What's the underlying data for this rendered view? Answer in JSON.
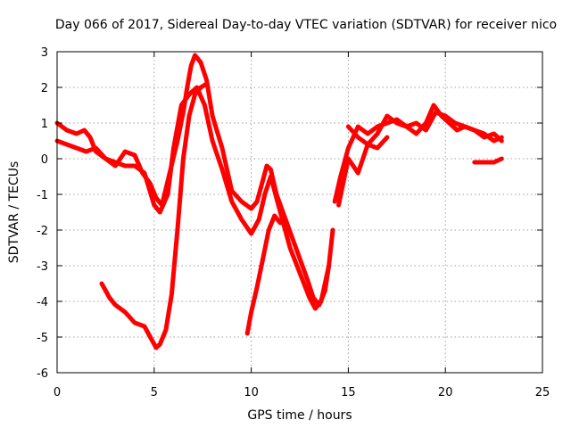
{
  "chart_data": {
    "type": "scatter",
    "title": "Day 066 of 2017, Sidereal Day-to-day VTEC variation (SDTVAR) for receiver nico",
    "xlabel": "GPS time / hours",
    "ylabel": "SDTVAR / TECUs",
    "xlim": [
      0,
      25
    ],
    "ylim": [
      -6,
      3
    ],
    "xticks": [
      0,
      5,
      10,
      15,
      20,
      25
    ],
    "yticks": [
      -6,
      -5,
      -4,
      -3,
      -2,
      -1,
      0,
      1,
      2,
      3
    ],
    "xtick_labels": [
      "0",
      "5",
      "10",
      "15",
      "20",
      "25"
    ],
    "ytick_labels": [
      "-6",
      "-5",
      "-4",
      "-3",
      "-2",
      "-1",
      "0",
      "1",
      "2",
      "3"
    ],
    "grid": true,
    "marker": "plus",
    "color": "#ff0000",
    "series": [
      {
        "x": [
          0.0,
          0.5,
          1.0,
          1.4,
          1.7,
          2.0,
          2.5,
          3.0,
          3.5,
          4.0,
          4.4,
          4.8,
          5.1,
          5.4,
          5.8,
          6.2,
          6.5,
          6.7,
          6.9,
          7.1,
          7.4,
          7.7,
          8.0,
          8.5,
          9.0,
          9.5,
          10.0,
          10.3,
          10.6,
          10.8,
          11.0,
          11.3,
          11.7,
          12.1,
          12.5,
          12.9,
          13.2,
          13.5,
          13.8,
          14.0,
          14.2
        ],
        "y": [
          1.0,
          0.8,
          0.7,
          0.8,
          0.6,
          0.2,
          0.0,
          -0.2,
          0.2,
          0.1,
          -0.4,
          -0.7,
          -1.1,
          -1.3,
          -0.4,
          0.5,
          1.3,
          2.0,
          2.6,
          2.9,
          2.7,
          2.2,
          1.2,
          0.3,
          -0.9,
          -1.2,
          -1.4,
          -1.2,
          -0.6,
          -0.2,
          -0.3,
          -1.0,
          -1.6,
          -2.2,
          -2.8,
          -3.4,
          -3.9,
          -4.1,
          -3.7,
          -3.0,
          -2.0
        ]
      },
      {
        "x": [
          0.0,
          0.5,
          1.0,
          1.5,
          2.0,
          2.5,
          3.0,
          3.5,
          4.0,
          4.5,
          5.0,
          5.3,
          5.7,
          6.0,
          6.4,
          6.8,
          7.2,
          7.6,
          8.0,
          8.5,
          9.0,
          9.5,
          10.0,
          10.4,
          10.7,
          11.0,
          11.5,
          12.0,
          12.5,
          13.0,
          13.3,
          13.6,
          14.0
        ],
        "y": [
          0.5,
          0.4,
          0.3,
          0.2,
          0.3,
          0.0,
          -0.1,
          -0.2,
          -0.2,
          -0.4,
          -1.3,
          -1.5,
          -1.0,
          0.3,
          1.5,
          1.8,
          2.0,
          1.5,
          0.5,
          -0.3,
          -1.2,
          -1.7,
          -2.1,
          -1.7,
          -1.0,
          -0.5,
          -1.5,
          -2.5,
          -3.2,
          -3.9,
          -4.2,
          -4.0,
          -3.0
        ]
      },
      {
        "x": [
          15.0,
          15.5,
          16.0,
          16.5,
          17.0,
          17.5,
          18.0,
          18.5,
          19.0,
          19.5,
          20.0,
          20.5,
          21.0,
          21.5,
          22.0,
          22.5,
          22.9
        ],
        "y": [
          0.9,
          0.6,
          0.4,
          0.7,
          1.2,
          1.0,
          0.9,
          1.0,
          0.8,
          1.3,
          1.2,
          1.0,
          0.9,
          0.8,
          0.7,
          0.5,
          0.6
        ]
      },
      {
        "x": [
          14.3,
          14.6,
          15.0,
          15.5,
          16.0,
          16.5,
          17.0,
          17.5,
          18.0,
          18.5,
          19.0,
          19.4,
          19.8,
          20.2,
          20.6,
          21.0,
          21.5,
          22.0,
          22.5,
          22.9
        ],
        "y": [
          -1.2,
          -0.5,
          0.3,
          0.9,
          0.7,
          0.9,
          1.0,
          1.1,
          0.9,
          0.7,
          1.0,
          1.5,
          1.2,
          1.0,
          0.8,
          0.9,
          0.8,
          0.6,
          0.7,
          0.5
        ]
      },
      {
        "x": [
          14.5,
          15.0,
          15.5,
          16.0,
          16.5,
          17.0
        ],
        "y": [
          -1.3,
          0.0,
          -0.4,
          0.4,
          0.3,
          0.6
        ]
      },
      {
        "x": [
          2.3,
          2.7,
          3.0,
          3.5,
          4.0,
          4.5,
          4.8,
          5.1,
          5.3,
          5.6,
          5.9,
          6.2,
          6.5,
          6.8,
          7.1,
          7.4,
          7.7
        ],
        "y": [
          -3.5,
          -3.9,
          -4.1,
          -4.3,
          -4.6,
          -4.7,
          -5.0,
          -5.3,
          -5.2,
          -4.8,
          -3.8,
          -2.0,
          0.0,
          1.2,
          1.8,
          2.0,
          2.1
        ]
      },
      {
        "x": [
          9.8,
          10.0,
          10.3,
          10.6,
          10.9,
          11.2,
          11.5
        ],
        "y": [
          -4.9,
          -4.3,
          -3.6,
          -2.8,
          -2.0,
          -1.6,
          -1.8
        ]
      },
      {
        "x": [
          21.5,
          22.0,
          22.5,
          22.9
        ],
        "y": [
          -0.1,
          -0.1,
          -0.1,
          0.0
        ]
      }
    ]
  }
}
